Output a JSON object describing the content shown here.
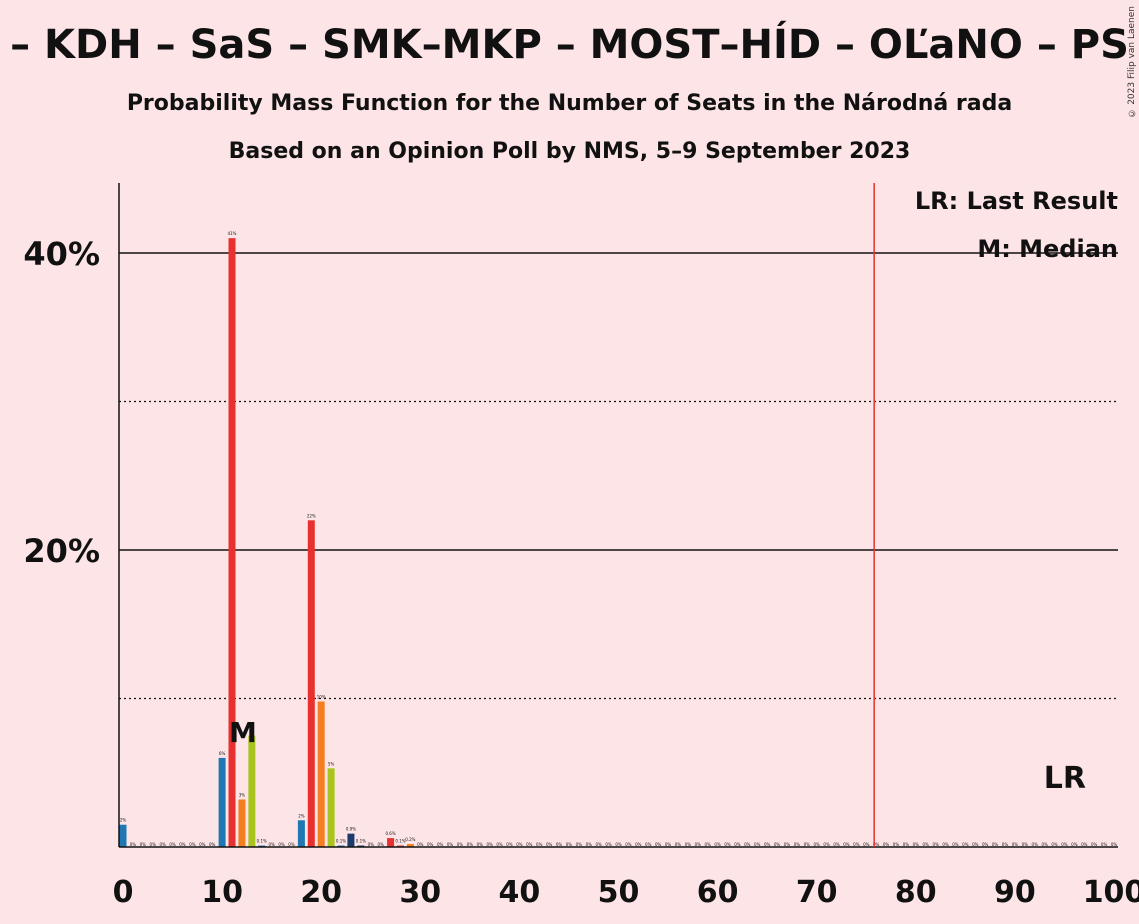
{
  "chart_data": {
    "type": "bar",
    "title": "– KDH – SaS – SMK–MKP – MOST–HÍD – OĽaNO – PS",
    "subtitle": "Probability Mass Function for the Number of Seats in the Národná rada",
    "subtitle2": "Based on an Opinion Poll by NMS, 5–9 September 2023",
    "copyright": "© 2023 Filip van Laenen",
    "xlim": [
      0,
      100
    ],
    "ylim": [
      0,
      45
    ],
    "x_ticks": [
      "0",
      "10",
      "20",
      "30",
      "40",
      "50",
      "60",
      "70",
      "80",
      "90",
      "100"
    ],
    "y_ticks": [
      "20%",
      "40%"
    ],
    "solid_gridlines": [
      20,
      40
    ],
    "dotted_gridlines": [
      10,
      30
    ],
    "last_result": 76,
    "median": 13,
    "legend": {
      "lr": "LR: Last Result",
      "m": "M: Median"
    },
    "lr_marker": "LR",
    "m_marker": "M",
    "bars": [
      {
        "x": 0,
        "value": 1.5,
        "label": "2%",
        "color": "#1f77b4"
      },
      {
        "x": 10,
        "value": 6,
        "label": "6%",
        "color": "#1f77b4"
      },
      {
        "x": 11,
        "value": 41,
        "label": "41%",
        "color": "#e8312e"
      },
      {
        "x": 12,
        "value": 3.2,
        "label": "3%",
        "color": "#f47f20"
      },
      {
        "x": 13,
        "value": 7.5,
        "label": "",
        "color": "#a9c41f"
      },
      {
        "x": 14,
        "value": 0.1,
        "label": "0.1%",
        "color": "#1f77b4"
      },
      {
        "x": 18,
        "value": 1.8,
        "label": "2%",
        "color": "#1f77b4"
      },
      {
        "x": 19,
        "value": 22,
        "label": "22%",
        "color": "#e8312e"
      },
      {
        "x": 20,
        "value": 9.8,
        "label": "10%",
        "color": "#f47f20"
      },
      {
        "x": 21,
        "value": 5.3,
        "label": "5%",
        "color": "#a9c41f"
      },
      {
        "x": 22,
        "value": 0.1,
        "label": "0.1%",
        "color": "#1f77b4"
      },
      {
        "x": 23,
        "value": 0.9,
        "label": "0.9%",
        "color": "#1b3a6e"
      },
      {
        "x": 24,
        "value": 0.1,
        "label": "0.1%",
        "color": "#1b3a6e"
      },
      {
        "x": 27,
        "value": 0.6,
        "label": "0.6%",
        "color": "#e8312e"
      },
      {
        "x": 28,
        "value": 0.1,
        "label": "0.1%",
        "color": "#e8312e"
      },
      {
        "x": 29,
        "value": 0.2,
        "label": "0.2%",
        "color": "#f47f20"
      }
    ]
  }
}
